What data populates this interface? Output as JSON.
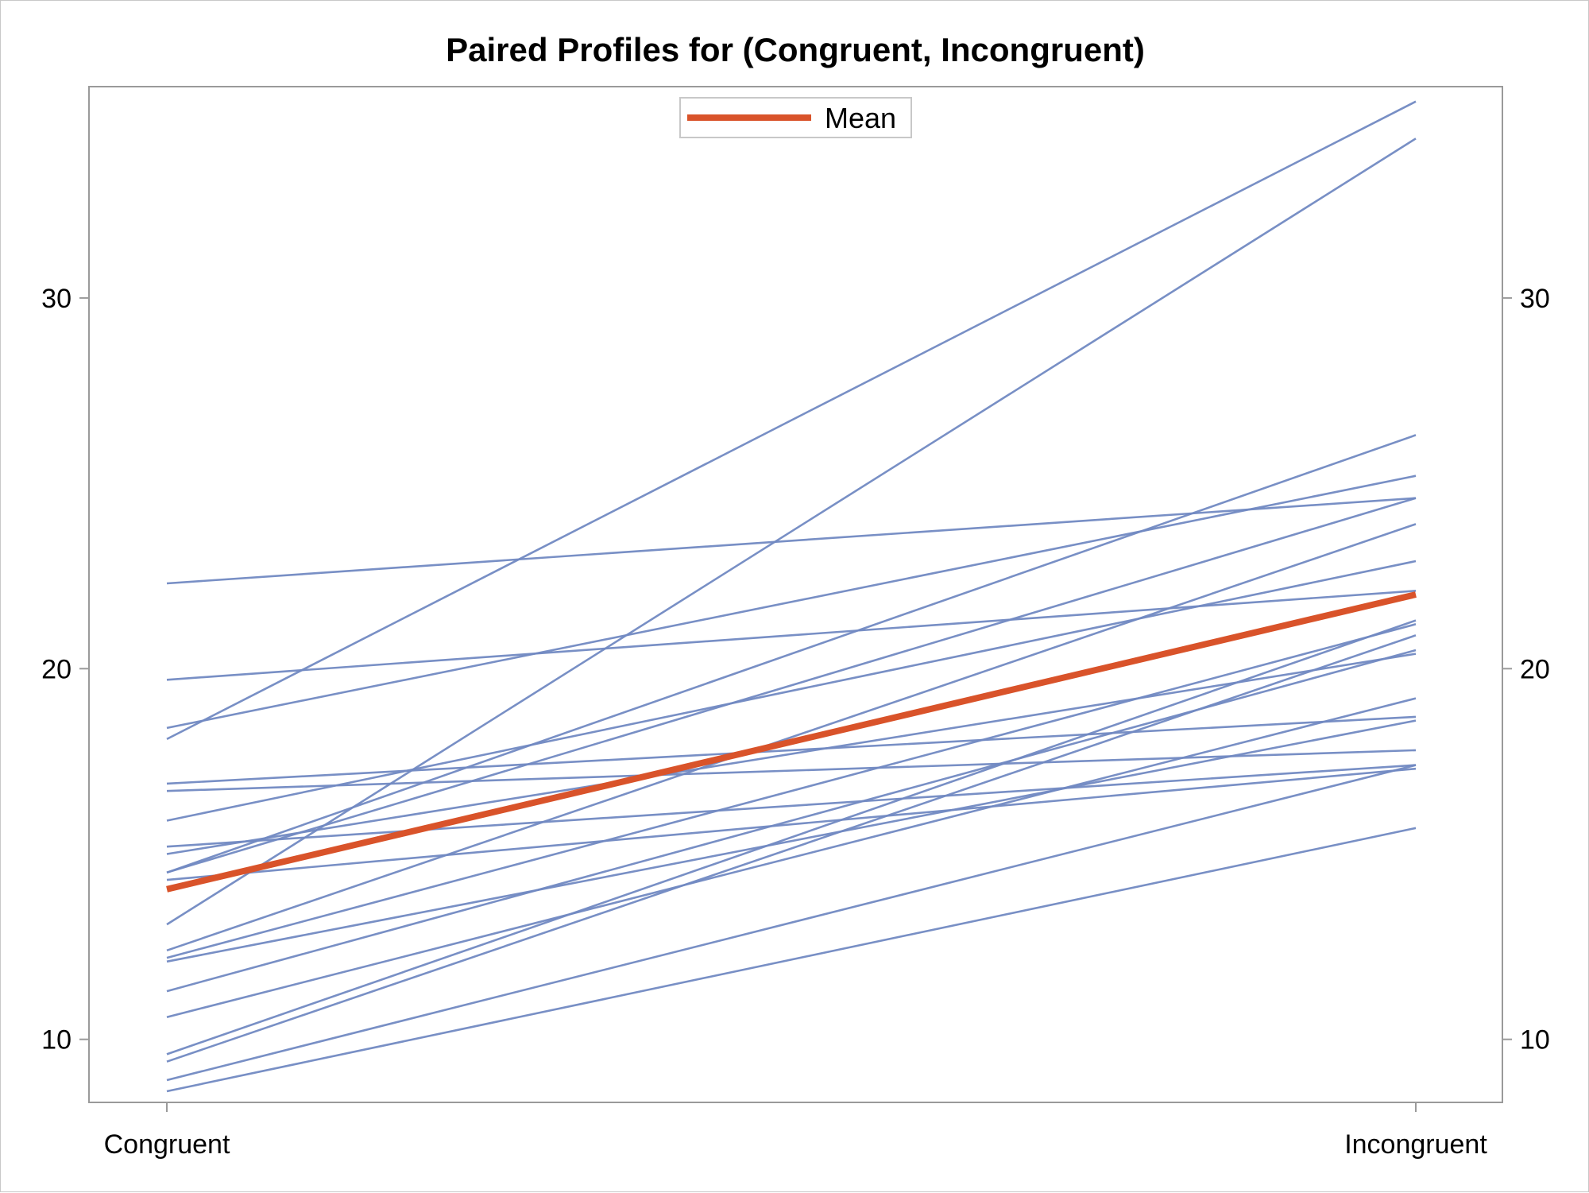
{
  "chart_data": {
    "type": "line",
    "title": "Paired Profiles for (Congruent, Incongruent)",
    "xlabel": "",
    "ylabel": "",
    "categories": [
      "Congruent",
      "Incongruent"
    ],
    "ylim": [
      8.3,
      35.7
    ],
    "yticks": [
      10,
      20,
      30
    ],
    "grid": false,
    "legend": {
      "position": "top-center",
      "entries": [
        "Mean"
      ]
    },
    "colors": {
      "profile": "#7189c2",
      "mean": "#d9532a",
      "axis": "#9a9a9a",
      "frame": "#c8c8c8"
    },
    "series": [
      {
        "values": [
          22.3,
          24.6
        ]
      },
      {
        "values": [
          19.7,
          22.1
        ]
      },
      {
        "values": [
          18.4,
          25.2
        ]
      },
      {
        "values": [
          18.1,
          35.3
        ]
      },
      {
        "values": [
          16.9,
          18.7
        ]
      },
      {
        "values": [
          16.7,
          17.8
        ]
      },
      {
        "values": [
          15.9,
          22.9
        ]
      },
      {
        "values": [
          15.2,
          17.4
        ]
      },
      {
        "values": [
          15.0,
          20.4
        ]
      },
      {
        "values": [
          14.5,
          24.6
        ]
      },
      {
        "values": [
          14.5,
          26.3
        ]
      },
      {
        "values": [
          14.3,
          17.3
        ]
      },
      {
        "values": [
          13.1,
          34.3
        ]
      },
      {
        "values": [
          12.4,
          23.9
        ]
      },
      {
        "values": [
          12.2,
          21.2
        ]
      },
      {
        "values": [
          12.1,
          18.6
        ]
      },
      {
        "values": [
          11.3,
          20.5
        ]
      },
      {
        "values": [
          10.6,
          19.2
        ]
      },
      {
        "values": [
          9.6,
          21.3
        ]
      },
      {
        "values": [
          9.4,
          20.9
        ]
      },
      {
        "values": [
          8.9,
          17.4
        ]
      },
      {
        "values": [
          8.6,
          15.7
        ]
      }
    ],
    "mean": {
      "name": "Mean",
      "values": [
        14.05,
        22.0
      ]
    }
  }
}
